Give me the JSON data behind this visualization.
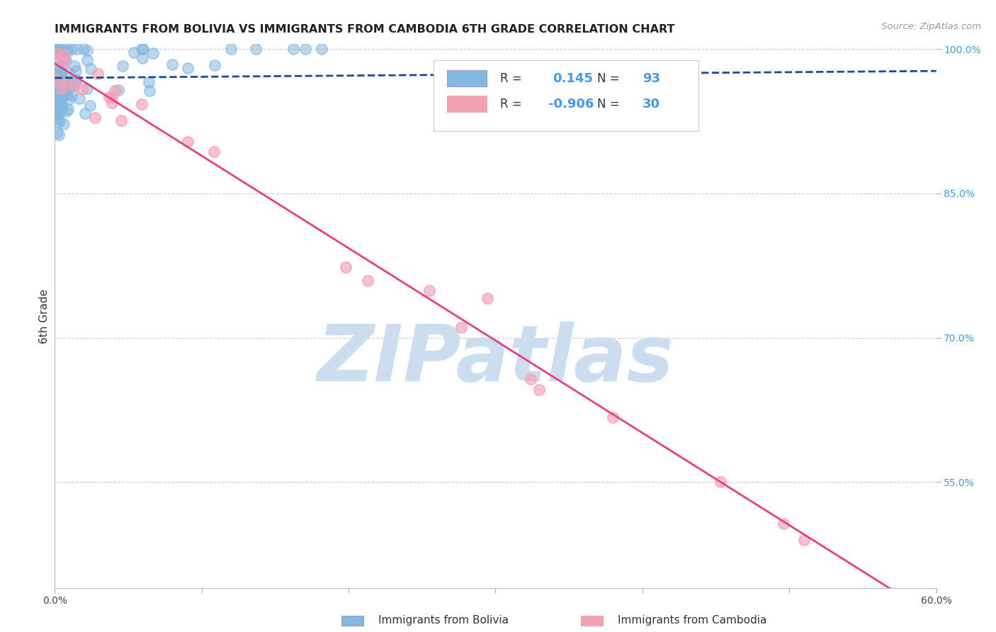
{
  "title": "IMMIGRANTS FROM BOLIVIA VS IMMIGRANTS FROM CAMBODIA 6TH GRADE CORRELATION CHART",
  "source": "Source: ZipAtlas.com",
  "ylabel": "6th Grade",
  "xlabel": "",
  "xlim": [
    0.0,
    0.6
  ],
  "ylim": [
    0.44,
    1.005
  ],
  "xtick_positions": [
    0.0,
    0.1,
    0.2,
    0.3,
    0.4,
    0.5,
    0.6
  ],
  "xticklabels": [
    "0.0%",
    "",
    "",
    "",
    "",
    "",
    "60.0%"
  ],
  "yticks": [
    0.55,
    0.7,
    0.85,
    1.0
  ],
  "yticklabels_right": [
    "55.0%",
    "70.0%",
    "85.0%",
    "100.0%"
  ],
  "bolivia_color": "#85b8e0",
  "cambodia_color": "#f4a0b5",
  "bolivia_line_color": "#1a4a9e",
  "cambodia_line_color": "#e84080",
  "bolivia_R": 0.145,
  "bolivia_N": 93,
  "cambodia_R": -0.906,
  "cambodia_N": 30,
  "watermark": "ZIPatlas",
  "watermark_color": "#ccddf0",
  "legend_label_bolivia": "Immigrants from Bolivia",
  "legend_label_cambodia": "Immigrants from Cambodia",
  "title_color": "#222222",
  "source_color": "#999999",
  "right_tick_color": "#4499ee",
  "grid_color": "#cccccc",
  "scatter_size": 120
}
